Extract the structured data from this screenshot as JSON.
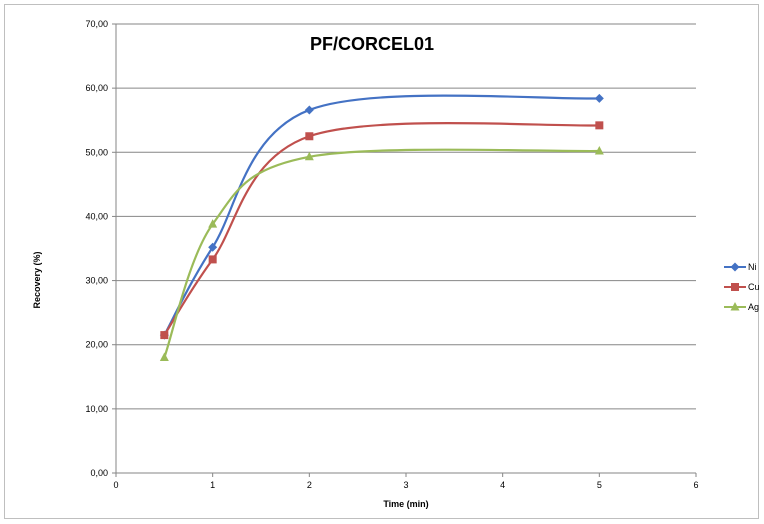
{
  "chart_data": {
    "type": "line",
    "smooth": true,
    "title": "PF/CORCEL01",
    "xlabel": "Time (min)",
    "ylabel": "Recovery  (%)",
    "xlim": [
      0,
      6
    ],
    "ylim": [
      0,
      70
    ],
    "x_ticks": [
      "0",
      "1",
      "2",
      "3",
      "4",
      "5",
      "6"
    ],
    "y_ticks": [
      "0,00",
      "10,00",
      "20,00",
      "30,00",
      "40,00",
      "50,00",
      "60,00",
      "70,00"
    ],
    "grid": "horizontal",
    "legend_position": "right",
    "series": [
      {
        "name": "Ni",
        "color": "#4472C4",
        "marker": "diamond",
        "x": [
          0.5,
          1,
          2,
          5
        ],
        "y": [
          21.5,
          35.2,
          56.6,
          58.4
        ]
      },
      {
        "name": "Cu",
        "color": "#C0504D",
        "marker": "square",
        "x": [
          0.5,
          1,
          2,
          5
        ],
        "y": [
          21.5,
          33.3,
          52.5,
          54.2
        ]
      },
      {
        "name": "Ag",
        "color": "#9BBB59",
        "marker": "triangle",
        "x": [
          0.5,
          1,
          2,
          5
        ],
        "y": [
          18.0,
          38.8,
          49.3,
          50.2
        ]
      }
    ]
  }
}
